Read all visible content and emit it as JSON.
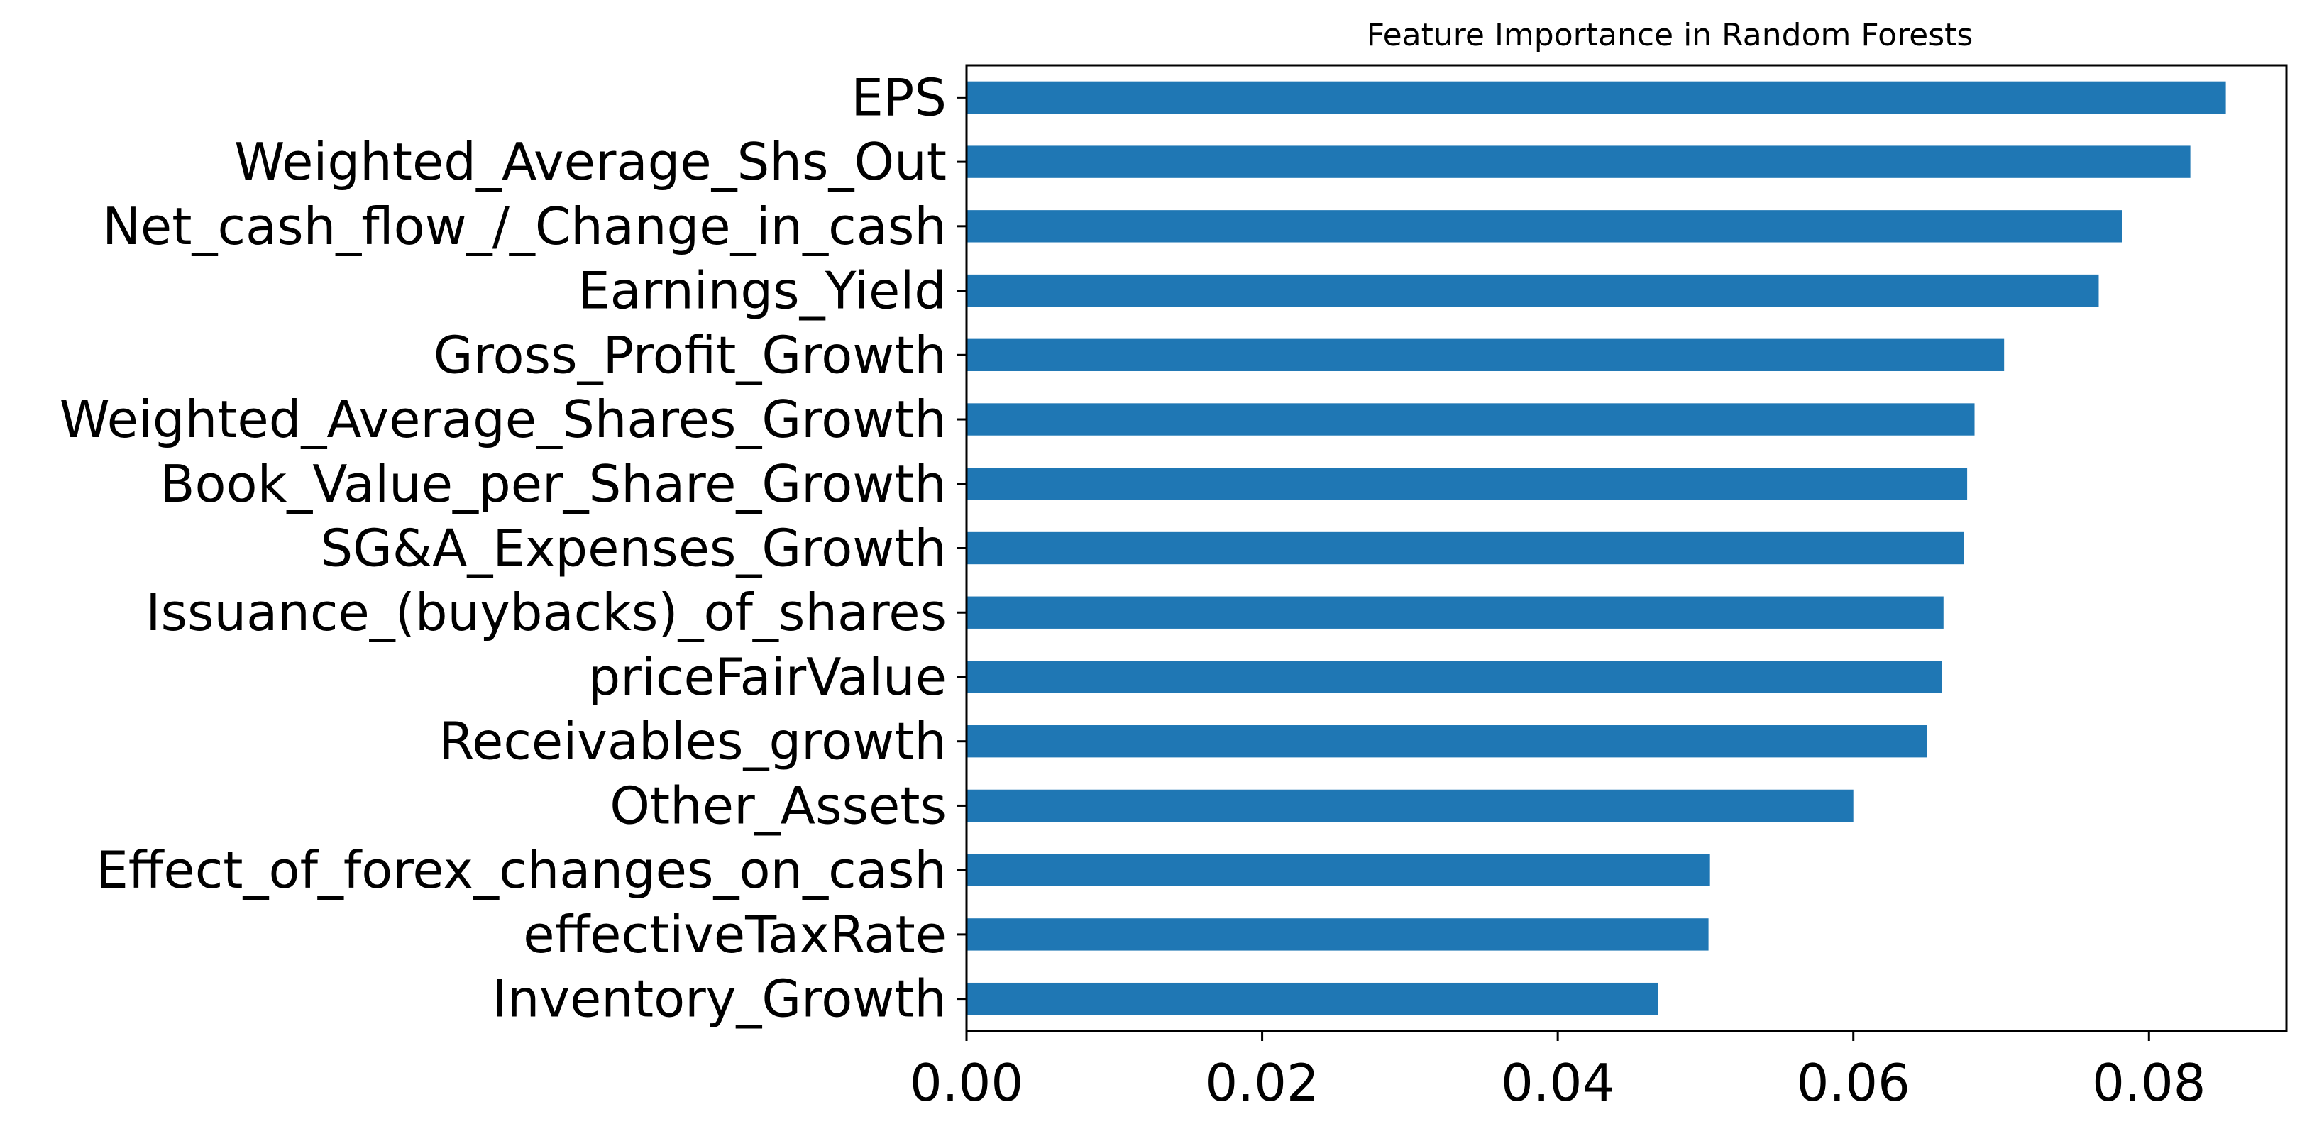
{
  "chart_data": {
    "type": "bar",
    "orientation": "horizontal",
    "title": "Feature Importance in Random Forests",
    "xlabel": "",
    "ylabel": "",
    "categories": [
      "EPS",
      "Weighted_Average_Shs_Out",
      "Net_cash_flow_/_Change_in_cash",
      "Earnings_Yield",
      "Gross_Profit_Growth",
      "Weighted_Average_Shares_Growth",
      "Book_Value_per_Share_Growth",
      "SG&A_Expenses_Growth",
      "Issuance_(buybacks)_of_shares",
      "priceFairValue",
      "Receivables_growth",
      "Other_Assets",
      "Effect_of_forex_changes_on_cash",
      "effectiveTaxRate",
      "Inventory_Growth"
    ],
    "values": [
      0.0852,
      0.0828,
      0.0782,
      0.0766,
      0.0702,
      0.0682,
      0.0677,
      0.0675,
      0.0661,
      0.066,
      0.065,
      0.06,
      0.0503,
      0.0502,
      0.0468
    ],
    "xlim": [
      0,
      0.0893
    ],
    "xticks": [
      {
        "value": 0,
        "label": "0.00"
      },
      {
        "value": 0.02,
        "label": "0.02"
      },
      {
        "value": 0.04,
        "label": "0.04"
      },
      {
        "value": 0.06,
        "label": "0.06"
      },
      {
        "value": 0.08,
        "label": "0.08"
      }
    ],
    "grid": false,
    "legend": "none",
    "bar_color": "#1f77b4"
  }
}
